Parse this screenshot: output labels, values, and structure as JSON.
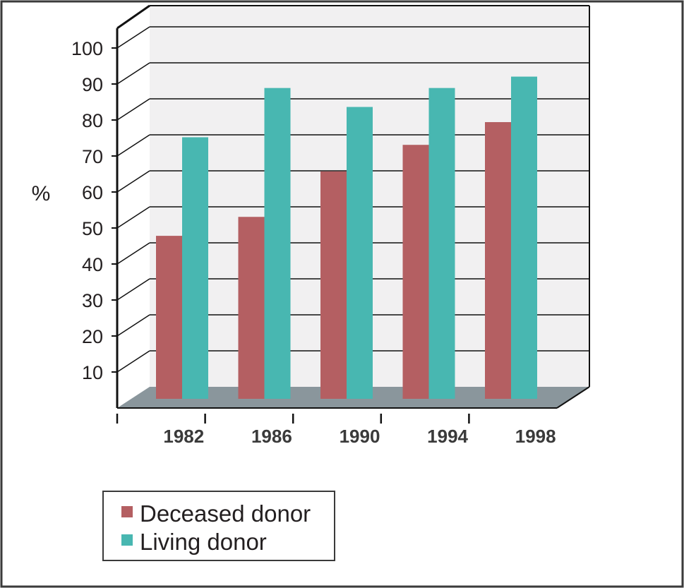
{
  "chart_data": {
    "type": "bar",
    "categories": [
      "1982",
      "1986",
      "1990",
      "1994",
      "1998"
    ],
    "series": [
      {
        "name": "Deceased donor",
        "values": [
          43,
          48,
          60,
          67,
          73
        ],
        "color": "#b45f62"
      },
      {
        "name": "Living donor",
        "values": [
          69,
          82,
          77,
          82,
          85
        ],
        "color": "#48b7b1"
      }
    ],
    "ylabel": "%",
    "xlabel": "",
    "ylim": [
      0,
      100
    ],
    "yticks": [
      10,
      20,
      30,
      40,
      50,
      60,
      70,
      80,
      90,
      100
    ],
    "grid": true,
    "legend_position": "bottom-left",
    "style": "3d-back-wall",
    "colors": {
      "wall": "#f1f0f1",
      "floor": "#8a969c",
      "frame_border": "#3a3a3a"
    }
  }
}
